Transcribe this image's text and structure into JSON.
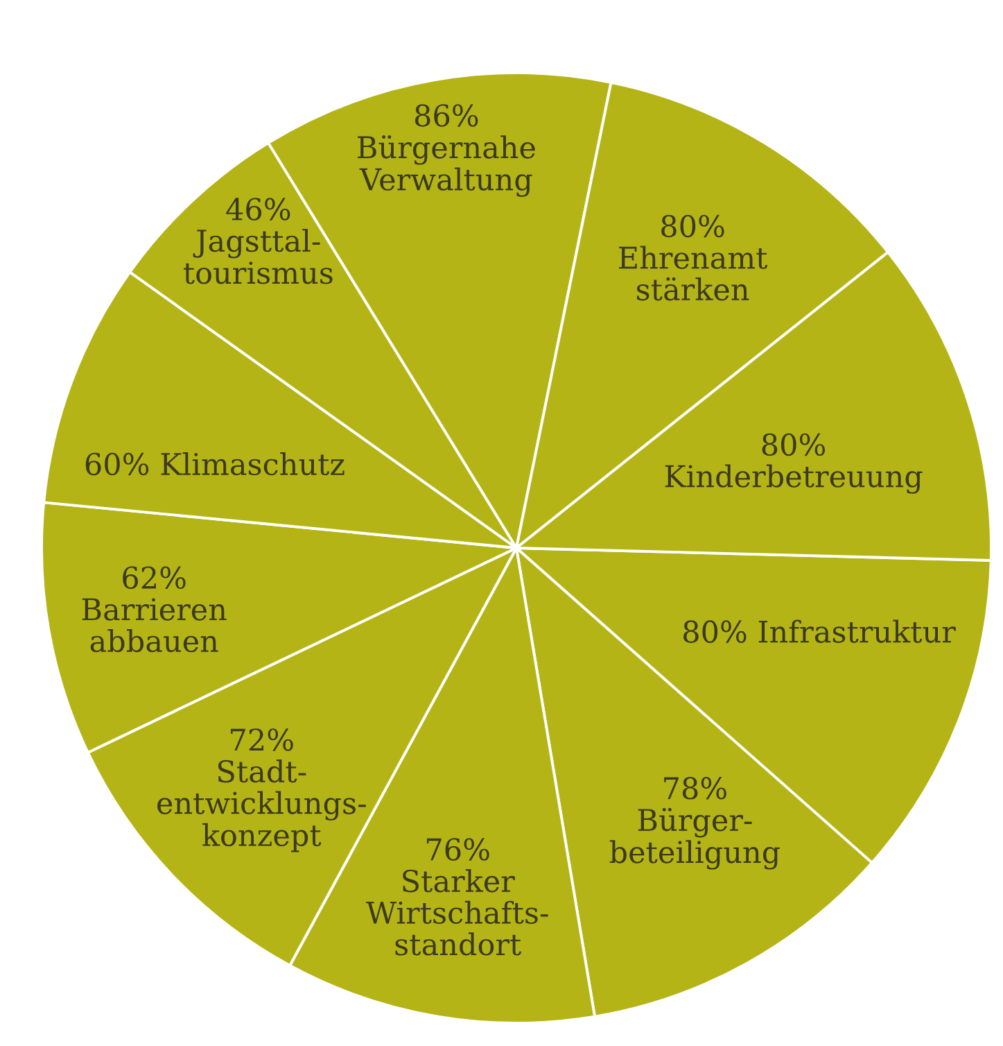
{
  "chart_data": {
    "type": "pie",
    "categories": [
      "Infrastruktur",
      "Bürger-\nbeteiligung",
      "Starker\nWirtschafts-\nstandort",
      "Stadt-\nentwicklungs-\nkonzept",
      "Barrieren\nabbauen",
      "Klimaschutz",
      "Jagsttal-\ntourismus",
      "Bürgernahe\nVerwaltung",
      "Ehrenamt\nstärken",
      "Kinderbetreuung"
    ],
    "values": [
      80,
      78,
      76,
      72,
      62,
      60,
      46,
      86,
      80,
      80
    ],
    "value_labels": [
      "80%",
      "78%",
      "76%",
      "72%",
      "62%",
      "60%",
      "46%",
      "86%",
      "80%",
      "80%"
    ],
    "colors": [
      "#b5b416",
      "#b5b416",
      "#b5b416",
      "#b5b416",
      "#b5b416",
      "#b5b416",
      "#b5b416",
      "#b5b416",
      "#b5b416",
      "#b5b416"
    ]
  }
}
